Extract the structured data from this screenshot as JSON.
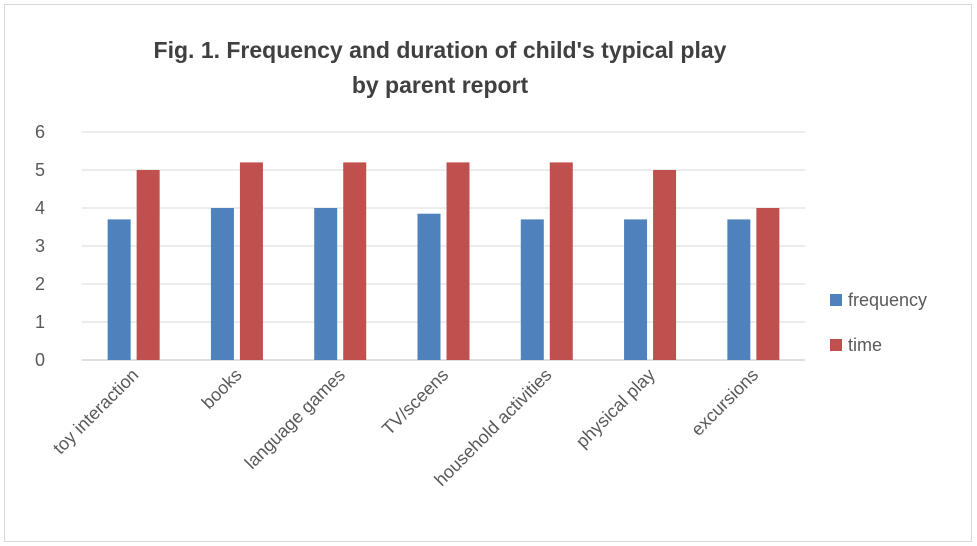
{
  "chart_data": {
    "type": "bar",
    "title_line1": "Fig. 1. Frequency and duration of child's typical play",
    "title_line2": "by parent report",
    "categories": [
      "toy interaction",
      "books",
      "language games",
      "TV/sceens",
      "household activities",
      "physical play",
      "excursions"
    ],
    "series": [
      {
        "name": "frequency",
        "color": "#4f81bd",
        "values": [
          3.7,
          4.0,
          4.0,
          3.85,
          3.7,
          3.7,
          3.7
        ]
      },
      {
        "name": "time",
        "color": "#c0504d",
        "values": [
          5.0,
          5.2,
          5.2,
          5.2,
          5.2,
          5.0,
          4.0
        ]
      }
    ],
    "yticks": [
      "0",
      "1",
      "2",
      "3",
      "4",
      "5",
      "6"
    ],
    "ylim": [
      0,
      6
    ],
    "grid": true,
    "legend_position": "right"
  }
}
